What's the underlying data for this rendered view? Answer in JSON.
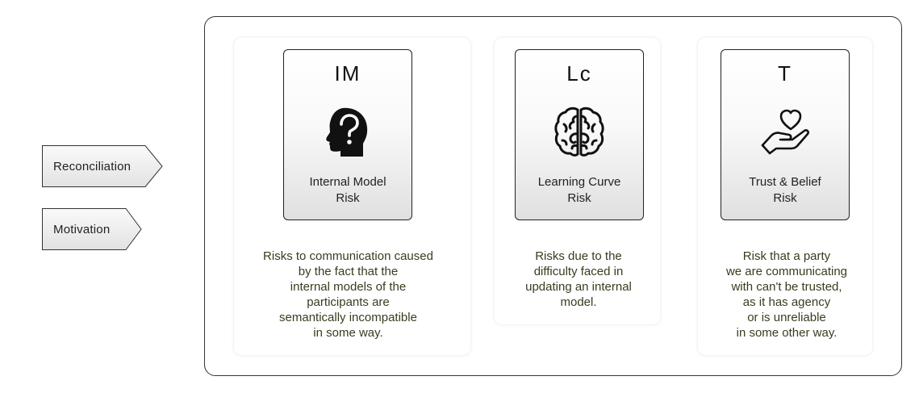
{
  "tags": [
    {
      "label": "Reconciliation"
    },
    {
      "label": "Motivation"
    }
  ],
  "risks": [
    {
      "abbr": "IM",
      "name": "Internal Model\nRisk",
      "icon": "head-question-icon",
      "description": "Risks to communication caused\nby the fact that the\ninternal models of the\nparticipants are\nsemantically incompatible\nin some way."
    },
    {
      "abbr": "Lc",
      "name": "Learning Curve\nRisk",
      "icon": "brain-icon",
      "description": "Risks due to the\ndifficulty faced in\nupdating an internal\nmodel."
    },
    {
      "abbr": "T",
      "name": "Trust & Belief\nRisk",
      "icon": "hand-heart-icon",
      "description": "Risk that a party\nwe are communicating\nwith can't be trusted,\nas it has agency\nor is unreliable\nin some other way."
    }
  ]
}
